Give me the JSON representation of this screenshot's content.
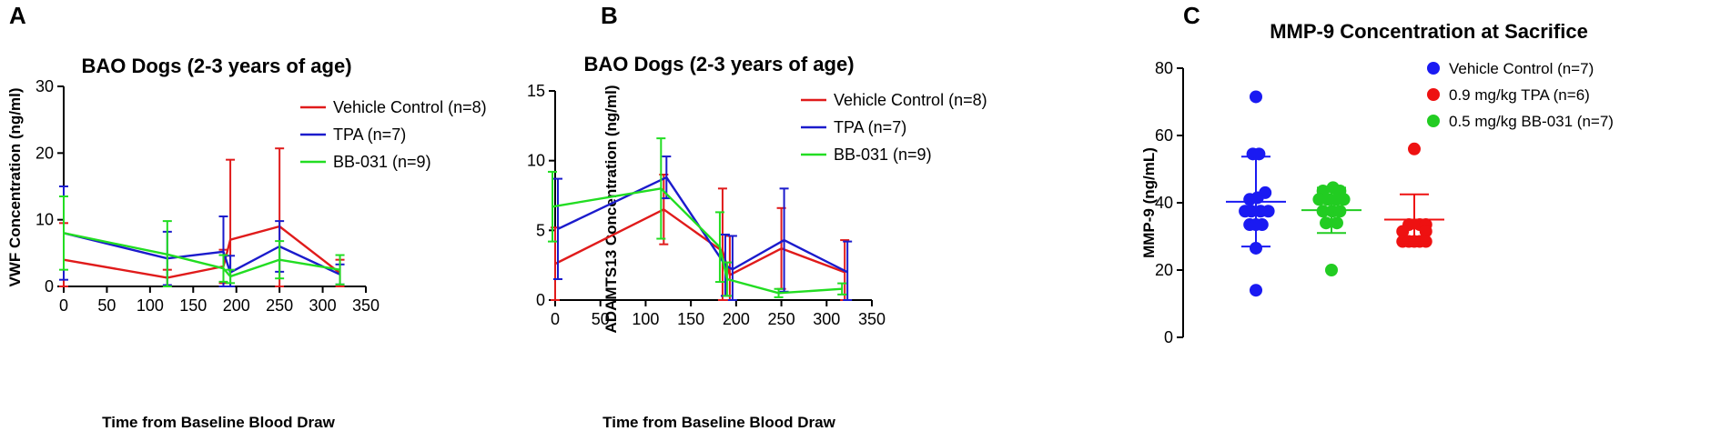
{
  "panels": {
    "a": {
      "letter": "A"
    },
    "b": {
      "letter": "B"
    },
    "c": {
      "letter": "C"
    }
  },
  "colors": {
    "vehicle": "#e01b1b",
    "tpa": "#1b1bcc",
    "bb031": "#22dd22",
    "blue_dot": "#1a1af2",
    "red_dot": "#ee1111",
    "green_dot": "#22cc22"
  },
  "chart_data": [
    {
      "id": "a",
      "type": "line",
      "title": "BAO Dogs (2-3 years of age)",
      "xlabel": "Time from Baseline Blood Draw",
      "ylabel": "VWF Concentration (ng/ml)",
      "xlim": [
        0,
        350
      ],
      "ylim": [
        0,
        30
      ],
      "xticks": [
        "0",
        "50",
        "100",
        "150",
        "200",
        "250",
        "300",
        "350"
      ],
      "yticks": [
        "0",
        "10",
        "20",
        "30"
      ],
      "xtick_values": [
        0,
        50,
        100,
        150,
        200,
        250,
        300,
        350
      ],
      "ytick_values": [
        0,
        10,
        20,
        30
      ],
      "legend_position": "top-right",
      "series": [
        {
          "name": "Vehicle Control (n=8)",
          "color_key": "vehicle",
          "x": [
            0,
            120,
            185,
            193,
            250,
            320
          ],
          "y": [
            4,
            1.3,
            3,
            7,
            9,
            2
          ],
          "err": [
            5.5,
            1.2,
            2.5,
            12,
            11.7,
            2
          ]
        },
        {
          "name": "TPA (n=7)",
          "color_key": "tpa",
          "x": [
            0,
            120,
            185,
            193,
            250,
            320
          ],
          "y": [
            8,
            4.2,
            5.2,
            2.1,
            6,
            1.8
          ],
          "err": [
            7,
            4,
            5.3,
            2.5,
            3.8,
            1.5
          ]
        },
        {
          "name": "BB-031 (n=9)",
          "color_key": "bb031",
          "x": [
            0,
            120,
            185,
            193,
            250,
            320
          ],
          "y": [
            8,
            4.8,
            2.7,
            1.5,
            4,
            2.5
          ],
          "err": [
            5.5,
            5,
            2,
            1,
            2.8,
            2.2
          ]
        }
      ]
    },
    {
      "id": "b",
      "type": "line",
      "title": "BAO Dogs (2-3 years of age)",
      "xlabel": "Time from Baseline Blood Draw",
      "ylabel": "ADAMTS13 Concentration (ng/ml)",
      "xlim": [
        0,
        350
      ],
      "ylim": [
        0,
        15
      ],
      "xticks": [
        "0",
        "50",
        "100",
        "150",
        "200",
        "250",
        "300",
        "350"
      ],
      "yticks": [
        "0",
        "5",
        "10",
        "15"
      ],
      "xtick_values": [
        0,
        50,
        100,
        150,
        200,
        250,
        300,
        350
      ],
      "ytick_values": [
        0,
        5,
        10,
        15
      ],
      "legend_position": "top-right",
      "series": [
        {
          "name": "Vehicle Control (n=8)",
          "color_key": "vehicle",
          "x": [
            0,
            120,
            185,
            193,
            250,
            320
          ],
          "y": [
            2.6,
            6.5,
            3.5,
            1.8,
            3.7,
            2
          ],
          "err": [
            2.6,
            2.5,
            4.5,
            2.8,
            2.9,
            2.3
          ]
        },
        {
          "name": "TPA (n=7)",
          "color_key": "tpa",
          "x": [
            0,
            120,
            185,
            193,
            250,
            320
          ],
          "y": [
            5.1,
            8.8,
            2.5,
            2.2,
            4.3,
            2
          ],
          "err": [
            3.6,
            1.5,
            2.2,
            2.4,
            3.7,
            2.2
          ]
        },
        {
          "name": "BB-031 (n=9)",
          "color_key": "bb031",
          "x": [
            0,
            120,
            185,
            193,
            250,
            320
          ],
          "y": [
            6.7,
            8,
            3.8,
            1.5,
            0.5,
            0.8
          ],
          "err": [
            2.5,
            3.6,
            2.5,
            1.2,
            0.3,
            0.4
          ]
        }
      ]
    },
    {
      "id": "c",
      "type": "scatter",
      "title": "MMP-9 Concentration at Sacrifice",
      "ylabel": "MMP-9 (ng/mL)",
      "ylim": [
        0,
        80
      ],
      "yticks": [
        "0",
        "20",
        "40",
        "60",
        "80"
      ],
      "ytick_values": [
        0,
        20,
        40,
        60,
        80
      ],
      "legend_position": "top-right",
      "groups": [
        {
          "name": "Vehicle Control (n=7)",
          "color_key": "blue_dot",
          "mean": 40.3,
          "sd_low": 27,
          "sd_high": 53.7,
          "points": [
            [
              0,
              71.5
            ],
            [
              -0.2,
              54.5
            ],
            [
              0.2,
              54.5
            ],
            [
              0.6,
              43
            ],
            [
              -0.4,
              41
            ],
            [
              0.1,
              41.5
            ],
            [
              -0.7,
              37.5
            ],
            [
              -0.3,
              37.5
            ],
            [
              0.3,
              37.5
            ],
            [
              0.8,
              37.5
            ],
            [
              -0.4,
              33.5
            ],
            [
              0.4,
              33.5
            ],
            [
              0,
              33.5
            ],
            [
              0,
              26.5
            ],
            [
              0,
              14
            ]
          ]
        },
        {
          "name": "0.9 mg/kg TPA (n=6)",
          "color_key": "red_dot",
          "mean": 35,
          "sd_low": 28.3,
          "sd_high": 42.5,
          "points": [
            [
              0,
              56
            ],
            [
              -0.35,
              33.5
            ],
            [
              0.35,
              33.5
            ],
            [
              0.75,
              33.5
            ],
            [
              -0.75,
              31.5
            ],
            [
              0.75,
              31.5
            ],
            [
              -0.75,
              28.5
            ],
            [
              -0.35,
              28.5
            ],
            [
              0.35,
              28.5
            ],
            [
              0.75,
              28.5
            ],
            [
              0,
              28.5
            ]
          ]
        },
        {
          "name": "0.5 mg/kg BB-031 (n=7)",
          "color_key": "green_dot",
          "mean": 37.8,
          "sd_low": 31,
          "sd_high": 44.5,
          "points": [
            [
              -0.55,
              43.5
            ],
            [
              0.1,
              44.5
            ],
            [
              0.55,
              43.5
            ],
            [
              -0.8,
              41
            ],
            [
              -0.25,
              41
            ],
            [
              0.3,
              41
            ],
            [
              0.8,
              41
            ],
            [
              -0.55,
              37.5
            ],
            [
              0.05,
              37.5
            ],
            [
              0.55,
              37.5
            ],
            [
              -0.35,
              34
            ],
            [
              0.35,
              34
            ],
            [
              0,
              20
            ]
          ]
        }
      ]
    }
  ]
}
